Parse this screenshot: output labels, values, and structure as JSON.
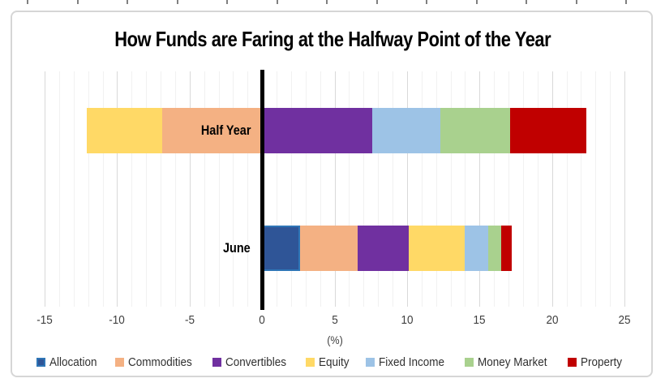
{
  "title": "How Funds are Faring at the Halfway Point of the Year",
  "chart_data": {
    "type": "bar",
    "orientation": "horizontal",
    "stacked": true,
    "title": "How Funds are Faring at the Halfway Point of the Year",
    "categories": [
      "Half Year",
      "June"
    ],
    "series": [
      {
        "name": "Allocation",
        "color": "#2F5597",
        "border_color": "#2E75B6",
        "values": [
          0.1,
          2.6
        ]
      },
      {
        "name": "Commodities",
        "color": "#F4B183",
        "values": [
          -6.9,
          4.0
        ]
      },
      {
        "name": "Convertibles",
        "color": "#7030A0",
        "values": [
          7.5,
          3.5
        ]
      },
      {
        "name": "Equity",
        "color": "#FFD966",
        "values": [
          -5.2,
          3.9
        ]
      },
      {
        "name": "Fixed Income",
        "color": "#9DC3E6",
        "values": [
          4.7,
          1.6
        ]
      },
      {
        "name": "Money Market",
        "color": "#A9D18E",
        "values": [
          4.8,
          0.9
        ]
      },
      {
        "name": "Property",
        "color": "#C00000",
        "values": [
          5.3,
          0.7
        ]
      }
    ],
    "xlabel": "(%)",
    "xlim": [
      -15,
      25
    ],
    "x_ticks": [
      -15,
      -10,
      -5,
      0,
      5,
      10,
      15,
      20,
      25
    ],
    "minor_grid_step": 1,
    "major_grid_step": 5,
    "grid": "on",
    "legend_position": "bottom",
    "axis_color": "#000000",
    "major_grid_color": "#D9D9D9",
    "minor_grid_color": "#F1F1F1"
  }
}
